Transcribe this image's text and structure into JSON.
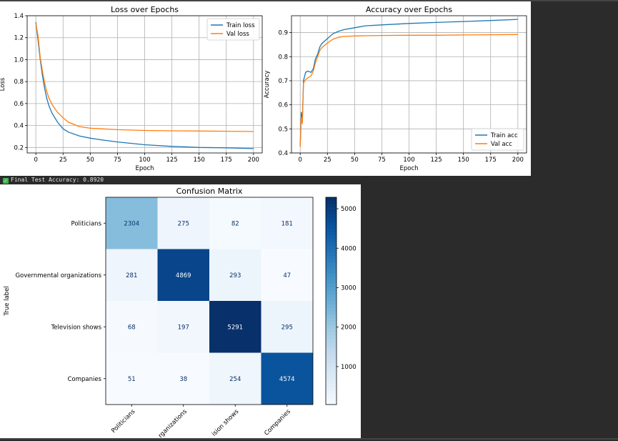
{
  "status": {
    "icon": "checkmark-icon",
    "text": "Final Test Accuracy: 0.8920"
  },
  "chart_data": [
    {
      "type": "line",
      "title": "Loss over Epochs",
      "xlabel": "Epoch",
      "ylabel": "Loss",
      "xlim": [
        -8,
        208
      ],
      "ylim": [
        0.15,
        1.4
      ],
      "xticks": [
        0,
        25,
        50,
        75,
        100,
        125,
        150,
        175,
        200
      ],
      "yticks": [
        0.2,
        0.4,
        0.6,
        0.8,
        1.0,
        1.2,
        1.4
      ],
      "ytick_labels": [
        "0.2",
        "0.4",
        "0.6",
        "0.8",
        "1.0",
        "1.2",
        "1.4"
      ],
      "grid": true,
      "legend": "top-right",
      "series": [
        {
          "name": "Train loss",
          "color": "#1f77b4",
          "x": [
            0,
            2,
            4,
            6,
            8,
            10,
            12,
            15,
            20,
            25,
            30,
            40,
            50,
            60,
            75,
            100,
            125,
            150,
            175,
            200
          ],
          "y": [
            1.34,
            1.18,
            1.0,
            0.86,
            0.74,
            0.65,
            0.58,
            0.51,
            0.43,
            0.37,
            0.34,
            0.305,
            0.285,
            0.27,
            0.25,
            0.225,
            0.21,
            0.2,
            0.196,
            0.19
          ]
        },
        {
          "name": "Val loss",
          "color": "#ff7f0e",
          "x": [
            0,
            2,
            4,
            6,
            8,
            10,
            12,
            15,
            20,
            25,
            30,
            40,
            50,
            60,
            75,
            100,
            125,
            150,
            175,
            200
          ],
          "y": [
            1.33,
            1.22,
            1.02,
            0.9,
            0.79,
            0.71,
            0.65,
            0.59,
            0.52,
            0.47,
            0.43,
            0.39,
            0.375,
            0.37,
            0.362,
            0.355,
            0.352,
            0.35,
            0.348,
            0.345
          ]
        }
      ]
    },
    {
      "type": "line",
      "title": "Accuracy over Epochs",
      "xlabel": "Epoch",
      "ylabel": "Accuracy",
      "xlim": [
        -8,
        208
      ],
      "ylim": [
        0.4,
        0.97
      ],
      "xticks": [
        0,
        25,
        50,
        75,
        100,
        125,
        150,
        175,
        200
      ],
      "yticks": [
        0.4,
        0.5,
        0.6,
        0.7,
        0.8,
        0.9
      ],
      "ytick_labels": [
        "0.4",
        "0.5",
        "0.6",
        "0.7",
        "0.8",
        "0.9"
      ],
      "grid": true,
      "legend": "bottom-right",
      "series": [
        {
          "name": "Train acc",
          "color": "#1f77b4",
          "x": [
            0,
            1,
            2,
            3,
            5,
            7,
            10,
            12,
            14,
            16,
            18,
            20,
            25,
            30,
            35,
            40,
            50,
            60,
            75,
            100,
            125,
            150,
            175,
            200
          ],
          "y": [
            0.43,
            0.57,
            0.53,
            0.7,
            0.735,
            0.74,
            0.735,
            0.75,
            0.79,
            0.81,
            0.84,
            0.855,
            0.875,
            0.895,
            0.905,
            0.912,
            0.92,
            0.928,
            0.932,
            0.938,
            0.942,
            0.946,
            0.95,
            0.955
          ]
        },
        {
          "name": "Val acc",
          "color": "#ff7f0e",
          "x": [
            0,
            1,
            2,
            3,
            5,
            7,
            10,
            12,
            14,
            16,
            18,
            20,
            25,
            30,
            35,
            40,
            50,
            60,
            75,
            100,
            125,
            150,
            175,
            200
          ],
          "y": [
            0.425,
            0.55,
            0.52,
            0.69,
            0.705,
            0.712,
            0.72,
            0.74,
            0.775,
            0.8,
            0.825,
            0.838,
            0.857,
            0.872,
            0.88,
            0.884,
            0.886,
            0.887,
            0.888,
            0.889,
            0.889,
            0.89,
            0.891,
            0.892
          ]
        }
      ]
    },
    {
      "type": "heatmap",
      "title": "Confusion Matrix",
      "ylabel": "True label",
      "row_labels": [
        "Politicians",
        "Governmental organizations",
        "Television shows",
        "Companies"
      ],
      "col_labels": [
        "Politicians",
        "rganizations",
        "ision shows",
        "Companies"
      ],
      "values": [
        [
          2304,
          275,
          82,
          181
        ],
        [
          281,
          4869,
          293,
          47
        ],
        [
          68,
          197,
          5291,
          295
        ],
        [
          51,
          38,
          254,
          4574
        ]
      ],
      "colormap": "Blues",
      "vmin": 38,
      "vmax": 5291,
      "colorbar_ticks": [
        1000,
        2000,
        3000,
        4000,
        5000
      ],
      "colorbar_tick_labels": [
        "1000",
        "2000",
        "3000",
        "4000",
        "5000"
      ]
    }
  ]
}
